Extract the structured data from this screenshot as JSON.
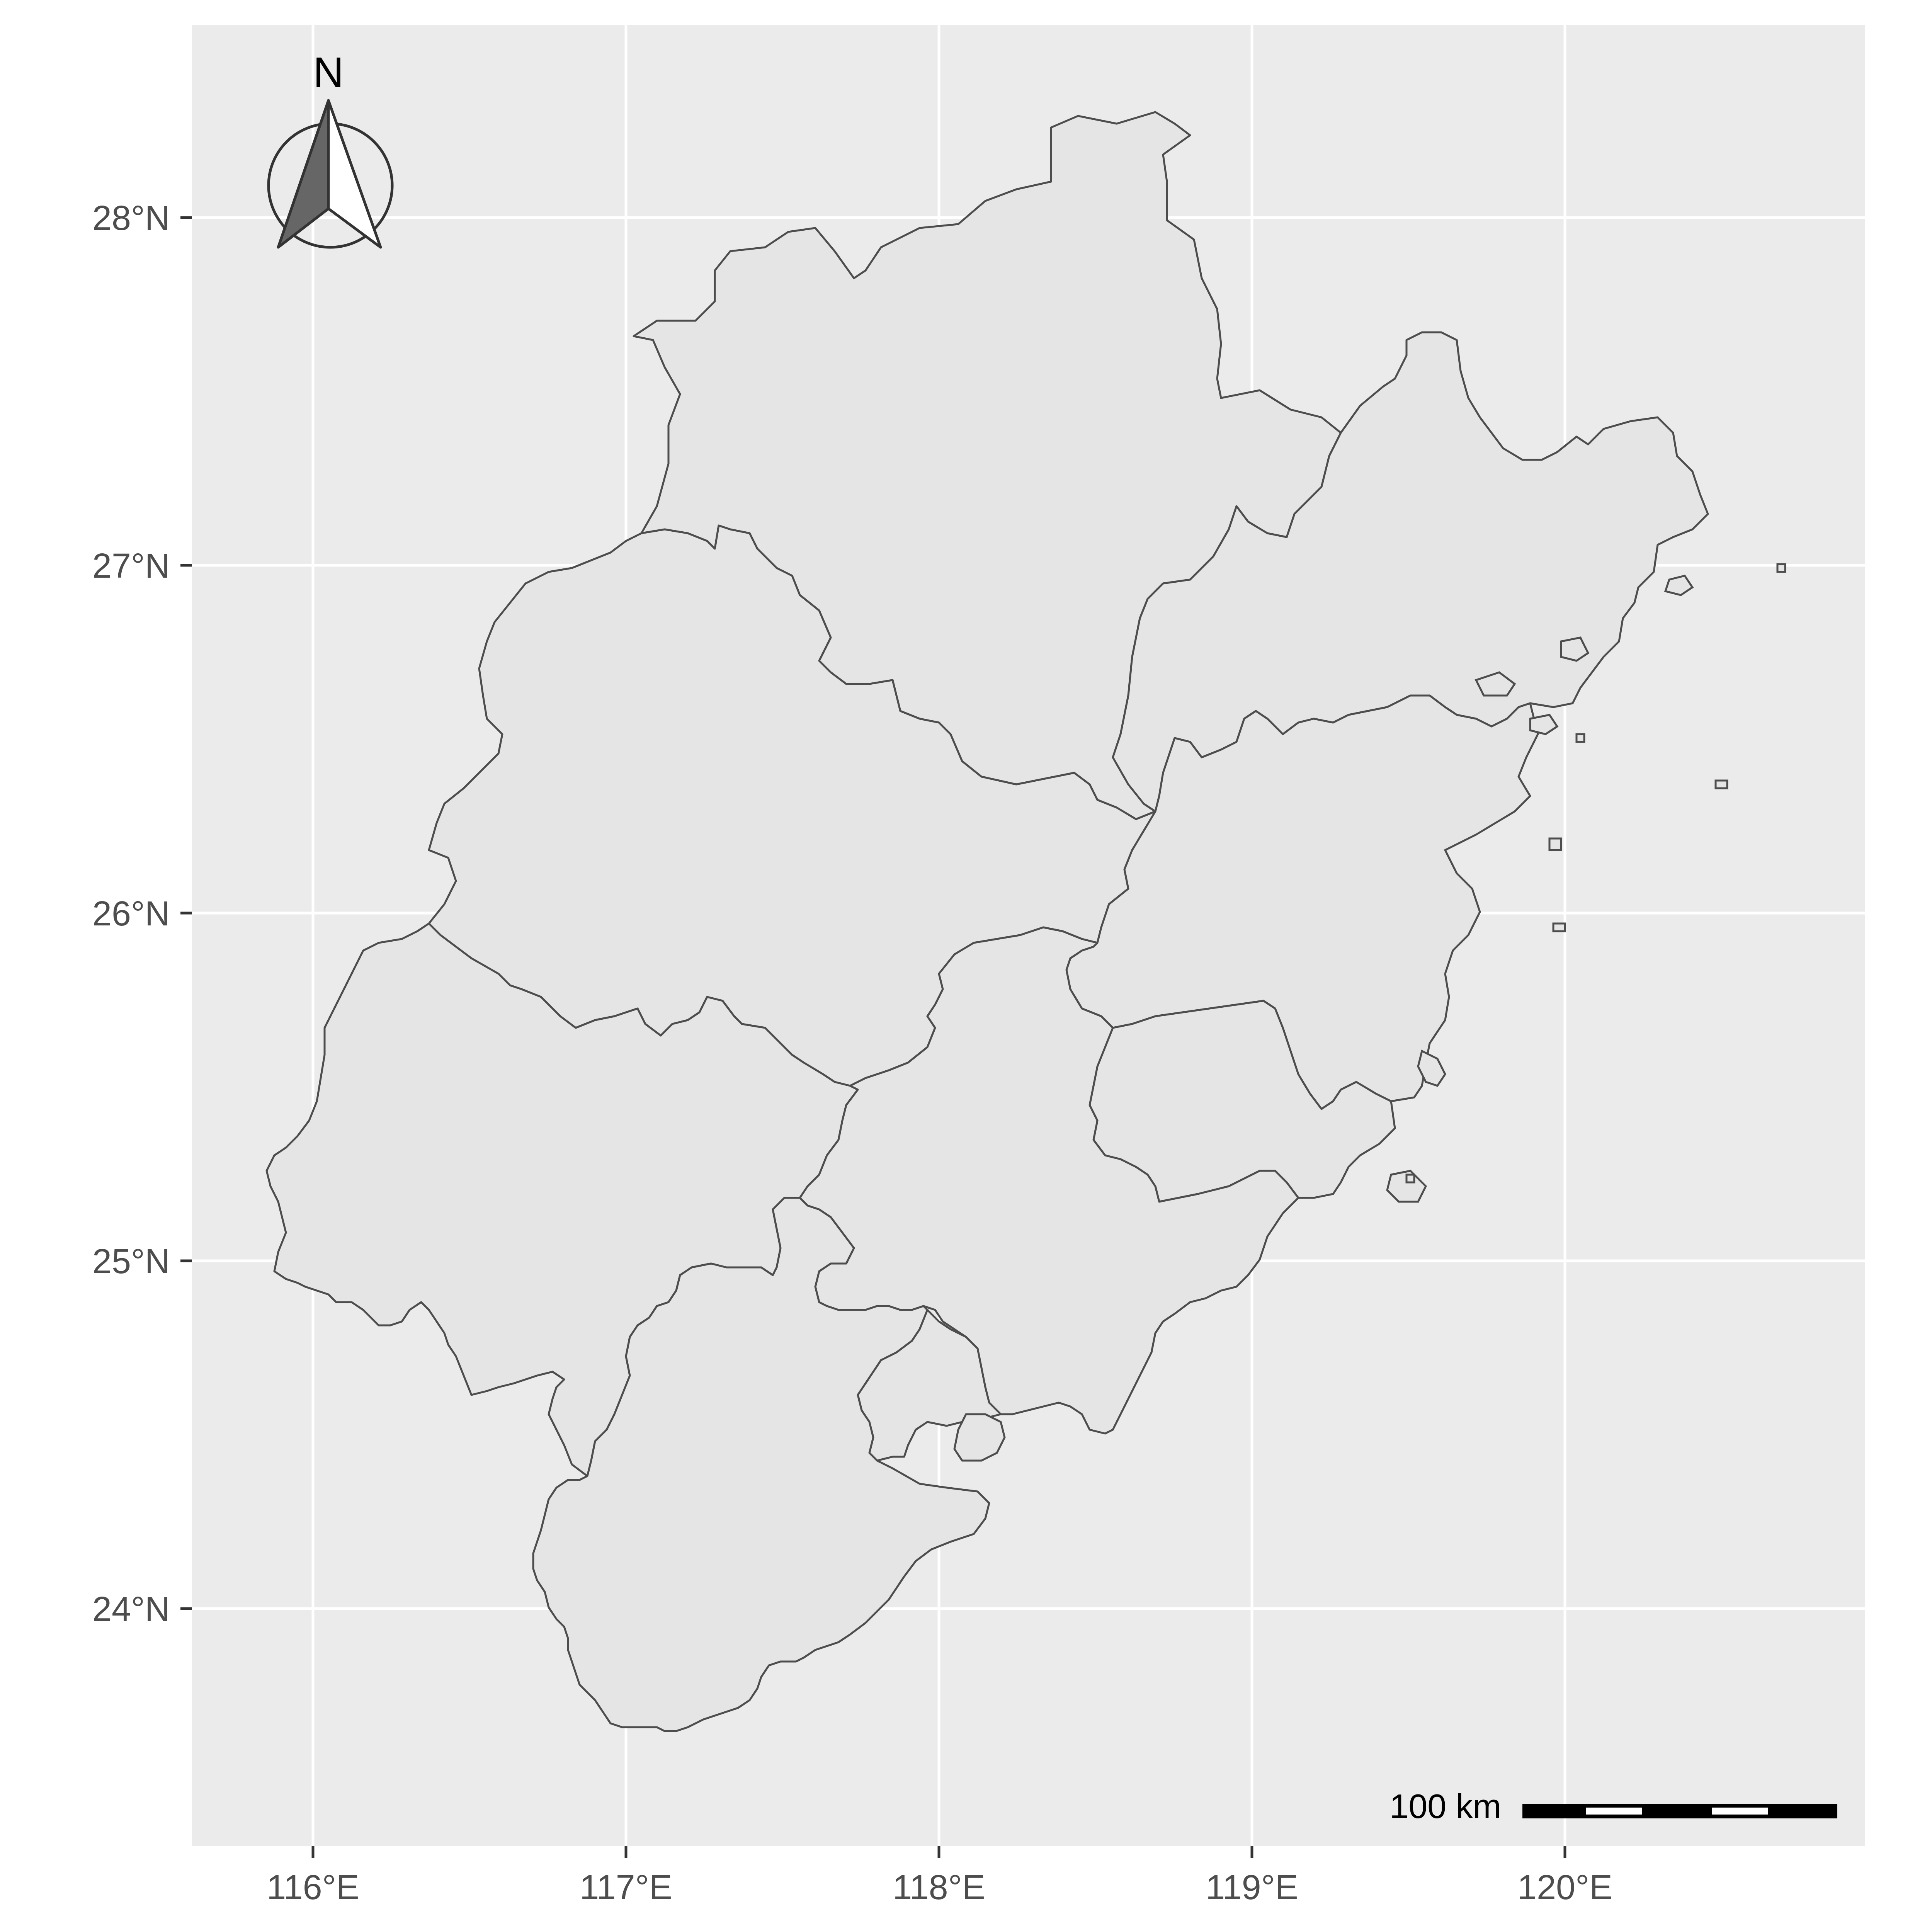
{
  "map": {
    "panel_color": "#ebebeb",
    "grid_color": "#ffffff",
    "region_fill": "#e5e5e5",
    "region_stroke": "#4d4d4d",
    "x_ticks": [
      "116°E",
      "117°E",
      "118°E",
      "119°E",
      "120°E"
    ],
    "y_ticks": [
      "24°N",
      "25°N",
      "26°N",
      "27°N",
      "28°N"
    ]
  },
  "north_arrow": {
    "label": "N",
    "icon": "north-arrow-icon"
  },
  "scale_bar": {
    "label": "100 km",
    "icon": "scale-bar-icon"
  }
}
